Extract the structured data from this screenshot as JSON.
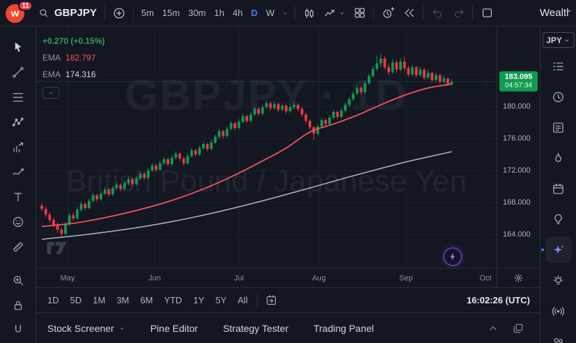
{
  "topbar": {
    "badge": "11",
    "symbol": "GBPJPY",
    "timeframes": [
      "5m",
      "15m",
      "30m",
      "1h",
      "4h",
      "D",
      "W"
    ],
    "active_timeframe": "D",
    "actions": [
      {
        "name": "chart-type",
        "icon": "candles"
      },
      {
        "name": "indicators",
        "icon": "chart-line",
        "chevron": true
      },
      {
        "name": "layouts",
        "icon": "grid"
      },
      {
        "name": "sep"
      },
      {
        "name": "alert",
        "icon": "alarm-plus"
      },
      {
        "name": "replay",
        "icon": "replay"
      },
      {
        "name": "sep"
      },
      {
        "name": "undo",
        "icon": "undo",
        "disabled": true
      },
      {
        "name": "redo",
        "icon": "redo",
        "disabled": true
      },
      {
        "name": "sep"
      },
      {
        "name": "save-layout",
        "icon": "square"
      }
    ],
    "right_label": "Wealth"
  },
  "left_toolbar": {
    "tools": [
      {
        "name": "cursor",
        "icon": "cursor",
        "active": true
      },
      {
        "name": "trend-line",
        "icon": "trend-line"
      },
      {
        "name": "fib-retracement",
        "icon": "fib"
      },
      {
        "name": "xabcd-pattern",
        "icon": "pattern"
      },
      {
        "name": "forecast",
        "icon": "forecast"
      },
      {
        "name": "brush",
        "icon": "brush"
      },
      {
        "name": "text",
        "icon": "text"
      },
      {
        "name": "emoji",
        "icon": "emoji"
      },
      {
        "name": "ruler",
        "icon": "ruler",
        "gap_after": true
      },
      {
        "name": "zoom",
        "icon": "zoom"
      },
      {
        "name": "lock",
        "icon": "lock"
      },
      {
        "name": "magnet",
        "icon": "magnet"
      }
    ]
  },
  "legend": {
    "change": "+0.270 (+0.15%)",
    "ema_fast_label": "EMA",
    "ema_fast_value": "182.797",
    "ema_slow_label": "EMA",
    "ema_slow_value": "174.316"
  },
  "price_axis": {
    "current_price": "183.095",
    "countdown": "04:57:34"
  },
  "range_bar": {
    "ranges": [
      "1D",
      "5D",
      "1M",
      "3M",
      "6M",
      "YTD",
      "1Y",
      "5Y",
      "All"
    ],
    "clock": "16:02:26 (UTC)"
  },
  "bottom_tabs": {
    "tabs": [
      {
        "label": "Stock Screener",
        "chevron": true
      },
      {
        "label": "Pine Editor"
      },
      {
        "label": "Strategy Tester"
      },
      {
        "label": "Trading Panel"
      }
    ]
  },
  "right_sidebar": {
    "currency": "JPY",
    "items": [
      {
        "name": "watchlist",
        "icon": "list"
      },
      {
        "name": "alerts",
        "icon": "clock"
      },
      {
        "name": "notes",
        "icon": "note"
      },
      {
        "name": "hotlists",
        "icon": "flame"
      },
      {
        "name": "calendar",
        "icon": "calendar"
      },
      {
        "name": "ideas",
        "icon": "bulb"
      },
      {
        "name": "ai-assistant",
        "icon": "sparkle",
        "active": true,
        "dot": true
      },
      {
        "name": "tips",
        "icon": "bulb-rays"
      },
      {
        "name": "streams",
        "icon": "broadcast"
      },
      {
        "name": "community",
        "icon": "people"
      }
    ]
  },
  "watermark": {
    "line1": "GBPJPY · 1D",
    "line2": "British Pound / Japanese Yen"
  },
  "chart_data": {
    "type": "candlestick",
    "title": "GBPJPY · 1D",
    "symbol": "GBPJPY",
    "interval": "1D",
    "change": "+0.270 (+0.15%)",
    "last_price": 183.095,
    "countdown": "04:57:34",
    "price_gridlines": [
      184,
      180,
      176,
      172,
      168,
      164
    ],
    "y_range": [
      159.8,
      190.0
    ],
    "months": [
      "May",
      "Jun",
      "Jul",
      "Aug",
      "Sep",
      "Oct"
    ],
    "colors": {
      "up": "#0f9b51",
      "down": "#f23645"
    },
    "ema_fast": {
      "label": "EMA",
      "value": 182.797,
      "color": "#f7525f",
      "points": [
        [
          0,
          165.0
        ],
        [
          8,
          165.4
        ],
        [
          16,
          166.1
        ],
        [
          24,
          167.0
        ],
        [
          32,
          168.1
        ],
        [
          40,
          169.5
        ],
        [
          48,
          171.2
        ],
        [
          56,
          173.2
        ],
        [
          62,
          174.8
        ],
        [
          68,
          176.8
        ],
        [
          74,
          177.8
        ],
        [
          80,
          178.9
        ],
        [
          86,
          180.2
        ],
        [
          92,
          181.4
        ],
        [
          98,
          182.3
        ],
        [
          104,
          182.8
        ]
      ]
    },
    "ema_slow": {
      "label": "EMA",
      "value": 174.316,
      "color": "#b2b5be",
      "points": [
        [
          0,
          163.4
        ],
        [
          13,
          164.1
        ],
        [
          26,
          165.0
        ],
        [
          39,
          166.2
        ],
        [
          52,
          167.7
        ],
        [
          65,
          169.4
        ],
        [
          78,
          171.2
        ],
        [
          91,
          172.9
        ],
        [
          98,
          173.7
        ],
        [
          104,
          174.35
        ]
      ]
    },
    "candles": [
      [
        167.6,
        167.9,
        166.9,
        167.2
      ],
      [
        167.2,
        167.5,
        166.2,
        166.5
      ],
      [
        166.5,
        166.8,
        165.5,
        165.8
      ],
      [
        165.8,
        166.1,
        164.9,
        165.2
      ],
      [
        165.2,
        165.5,
        164.2,
        164.6
      ],
      [
        164.6,
        164.9,
        163.6,
        164.1
      ],
      [
        164.1,
        165.6,
        163.9,
        165.3
      ],
      [
        165.3,
        166.7,
        165.0,
        166.4
      ],
      [
        166.4,
        166.8,
        165.7,
        166.0
      ],
      [
        166.0,
        167.4,
        165.8,
        167.1
      ],
      [
        167.1,
        168.1,
        166.8,
        167.8
      ],
      [
        167.8,
        168.0,
        167.0,
        167.3
      ],
      [
        167.3,
        168.5,
        167.1,
        168.2
      ],
      [
        168.2,
        169.2,
        168.0,
        168.9
      ],
      [
        168.9,
        169.1,
        168.1,
        168.4
      ],
      [
        168.4,
        169.4,
        168.2,
        169.1
      ],
      [
        169.1,
        169.9,
        168.9,
        169.6
      ],
      [
        169.6,
        169.8,
        168.7,
        169.0
      ],
      [
        169.0,
        170.1,
        168.8,
        169.8
      ],
      [
        169.8,
        170.5,
        169.6,
        170.2
      ],
      [
        170.2,
        170.4,
        169.4,
        169.7
      ],
      [
        169.7,
        170.7,
        169.5,
        170.4
      ],
      [
        170.4,
        171.2,
        170.2,
        170.9
      ],
      [
        170.9,
        171.1,
        170.0,
        170.3
      ],
      [
        170.3,
        171.3,
        170.1,
        171.0
      ],
      [
        171.0,
        171.9,
        170.8,
        171.6
      ],
      [
        171.6,
        171.8,
        170.8,
        171.1
      ],
      [
        171.1,
        172.3,
        170.9,
        172.0
      ],
      [
        172.0,
        172.9,
        171.8,
        172.6
      ],
      [
        172.6,
        172.8,
        171.8,
        172.1
      ],
      [
        172.1,
        173.2,
        171.9,
        172.9
      ],
      [
        172.9,
        173.7,
        172.7,
        173.4
      ],
      [
        173.4,
        173.6,
        172.5,
        172.8
      ],
      [
        172.8,
        173.9,
        172.6,
        173.6
      ],
      [
        173.6,
        174.4,
        173.4,
        174.1
      ],
      [
        174.1,
        174.3,
        173.2,
        173.5
      ],
      [
        173.5,
        173.7,
        172.6,
        172.9
      ],
      [
        172.9,
        174.1,
        172.7,
        173.8
      ],
      [
        173.8,
        174.8,
        173.6,
        174.5
      ],
      [
        174.5,
        174.7,
        173.7,
        174.0
      ],
      [
        174.0,
        175.1,
        173.8,
        174.8
      ],
      [
        174.8,
        175.6,
        174.6,
        175.3
      ],
      [
        175.3,
        175.5,
        174.4,
        174.7
      ],
      [
        174.7,
        175.8,
        174.5,
        175.5
      ],
      [
        175.5,
        176.5,
        175.3,
        176.2
      ],
      [
        176.2,
        177.2,
        176.0,
        176.9
      ],
      [
        176.9,
        177.1,
        176.0,
        176.3
      ],
      [
        176.3,
        177.5,
        176.1,
        177.2
      ],
      [
        177.2,
        178.2,
        177.0,
        177.9
      ],
      [
        177.9,
        178.1,
        177.0,
        177.3
      ],
      [
        177.3,
        178.4,
        177.1,
        178.1
      ],
      [
        178.1,
        179.1,
        177.9,
        178.8
      ],
      [
        178.8,
        179.0,
        177.9,
        178.2
      ],
      [
        178.2,
        179.3,
        178.0,
        179.0
      ],
      [
        179.0,
        180.0,
        178.8,
        179.7
      ],
      [
        179.7,
        179.9,
        178.8,
        179.1
      ],
      [
        179.1,
        180.2,
        178.9,
        179.9
      ],
      [
        179.9,
        180.7,
        179.7,
        180.4
      ],
      [
        180.4,
        180.6,
        179.5,
        179.8
      ],
      [
        179.8,
        180.6,
        179.6,
        180.3
      ],
      [
        180.3,
        180.5,
        179.3,
        179.6
      ],
      [
        179.6,
        180.4,
        179.4,
        180.1
      ],
      [
        180.1,
        180.3,
        179.1,
        179.4
      ],
      [
        179.4,
        180.2,
        179.2,
        179.9
      ],
      [
        179.9,
        180.5,
        179.7,
        180.2
      ],
      [
        180.2,
        180.4,
        179.4,
        179.7
      ],
      [
        179.7,
        179.9,
        178.7,
        179.0
      ],
      [
        179.0,
        179.2,
        177.9,
        178.2
      ],
      [
        178.2,
        178.4,
        177.1,
        177.4
      ],
      [
        177.4,
        177.6,
        175.8,
        176.6
      ],
      [
        176.6,
        177.8,
        176.4,
        177.5
      ],
      [
        177.5,
        178.6,
        177.3,
        178.3
      ],
      [
        178.3,
        178.5,
        177.5,
        177.8
      ],
      [
        177.8,
        178.9,
        177.6,
        178.6
      ],
      [
        178.6,
        179.6,
        178.4,
        179.3
      ],
      [
        179.3,
        179.5,
        178.4,
        178.7
      ],
      [
        178.7,
        179.8,
        178.5,
        179.5
      ],
      [
        179.5,
        180.5,
        179.3,
        180.2
      ],
      [
        180.2,
        181.2,
        180.0,
        180.9
      ],
      [
        180.9,
        181.9,
        180.7,
        181.6
      ],
      [
        181.6,
        182.6,
        181.4,
        182.3
      ],
      [
        182.3,
        182.5,
        181.5,
        181.8
      ],
      [
        181.8,
        183.2,
        181.6,
        182.9
      ],
      [
        182.9,
        184.1,
        182.7,
        183.8
      ],
      [
        183.8,
        185.1,
        183.6,
        184.7
      ],
      [
        184.7,
        186.4,
        184.4,
        185.4
      ],
      [
        185.4,
        186.6,
        184.9,
        186.0
      ],
      [
        186.0,
        186.3,
        184.6,
        184.9
      ],
      [
        184.9,
        185.4,
        183.9,
        184.3
      ],
      [
        184.3,
        185.9,
        184.1,
        185.5
      ],
      [
        185.5,
        185.8,
        184.2,
        184.6
      ],
      [
        184.6,
        186.0,
        184.4,
        185.6
      ],
      [
        185.6,
        186.2,
        184.4,
        184.8
      ],
      [
        184.8,
        185.1,
        183.7,
        184.0
      ],
      [
        184.0,
        185.2,
        183.8,
        184.9
      ],
      [
        184.9,
        185.1,
        183.6,
        183.9
      ],
      [
        183.9,
        185.0,
        183.7,
        184.6
      ],
      [
        184.6,
        184.8,
        183.3,
        183.6
      ],
      [
        183.6,
        184.6,
        183.4,
        184.2
      ],
      [
        184.2,
        184.4,
        183.0,
        183.3
      ],
      [
        183.3,
        184.2,
        183.1,
        183.9
      ],
      [
        183.9,
        184.1,
        182.8,
        183.1
      ],
      [
        183.1,
        183.9,
        182.9,
        183.5
      ],
      [
        183.5,
        183.7,
        182.6,
        182.83
      ],
      [
        182.83,
        183.4,
        182.6,
        183.095
      ]
    ]
  }
}
